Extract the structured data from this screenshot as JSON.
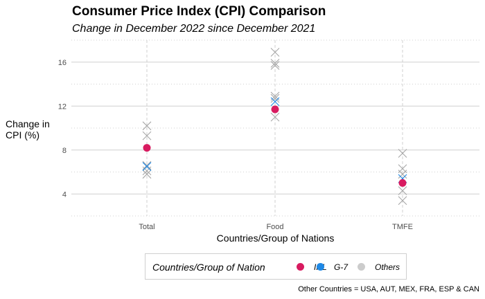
{
  "chart_data": {
    "type": "scatter",
    "title": "Consumer Price Index (CPI) Comparison",
    "subtitle": "Change in December 2022 since December 2021",
    "xlabel": "Countries/Group of Nations",
    "ylabel": "Change in CPI (%)",
    "categories": [
      "Total",
      "Food",
      "TMFE"
    ],
    "y_ticks": [
      4,
      8,
      12,
      16
    ],
    "ylim": [
      2,
      18
    ],
    "grid": true,
    "legend": {
      "title": "Countries/Group of Nation",
      "position": "bottom",
      "entries": [
        {
          "name": "IRL",
          "color": "#d81b60"
        },
        {
          "name": "G-7",
          "color": "#1e88e5"
        },
        {
          "name": "Others",
          "color": "#cccccc"
        }
      ]
    },
    "series": [
      {
        "name": "IRL",
        "marker": "circle",
        "color": "#d81b60",
        "values": [
          8.2,
          11.7,
          5.0
        ]
      },
      {
        "name": "G-7",
        "marker": "cross",
        "color": "#1e88e5",
        "values": [
          6.5,
          12.4,
          5.4
        ]
      },
      {
        "name": "Others",
        "marker": "cross",
        "color": "#a6a6a6",
        "values": [
          [
            10.2,
            9.3,
            6.6,
            6.1,
            5.8
          ],
          [
            16.9,
            15.9,
            15.7,
            12.9,
            12.7,
            11.0
          ],
          [
            7.7,
            6.3,
            5.8,
            4.3,
            3.4
          ]
        ]
      }
    ],
    "footnote": "Other Countries = USA, AUT, MEX, FRA, ESP & CAN"
  }
}
